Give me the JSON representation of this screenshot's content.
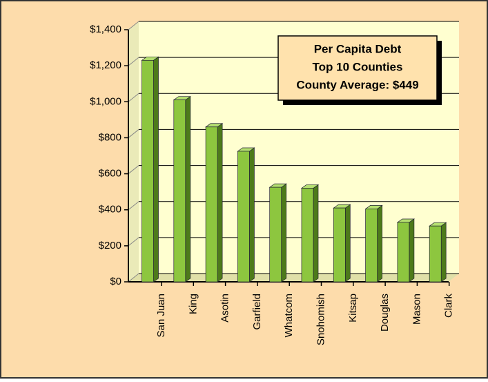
{
  "chart_data": {
    "type": "bar",
    "title": "Per Capita Debt",
    "subtitle": "Top 10 Counties",
    "annotation": "County Average: $449",
    "categories": [
      "San Juan",
      "King",
      "Asotin",
      "Garfield",
      "Whatcom",
      "Snohomish",
      "Kitsap",
      "Douglas",
      "Mason",
      "Clark"
    ],
    "values": [
      1230,
      1010,
      860,
      725,
      525,
      520,
      410,
      405,
      330,
      310
    ],
    "color": "#8dc63f",
    "ylim": [
      0,
      1400
    ],
    "yticks": [
      {
        "value": 0,
        "label": "$0"
      },
      {
        "value": 200,
        "label": "$200"
      },
      {
        "value": 400,
        "label": "$400"
      },
      {
        "value": 600,
        "label": "$600"
      },
      {
        "value": 800,
        "label": "$800"
      },
      {
        "value": 1000,
        "label": "$1,000"
      },
      {
        "value": 1200,
        "label": "$1,200"
      },
      {
        "value": 1400,
        "label": "$1,400"
      }
    ],
    "grid": true
  }
}
